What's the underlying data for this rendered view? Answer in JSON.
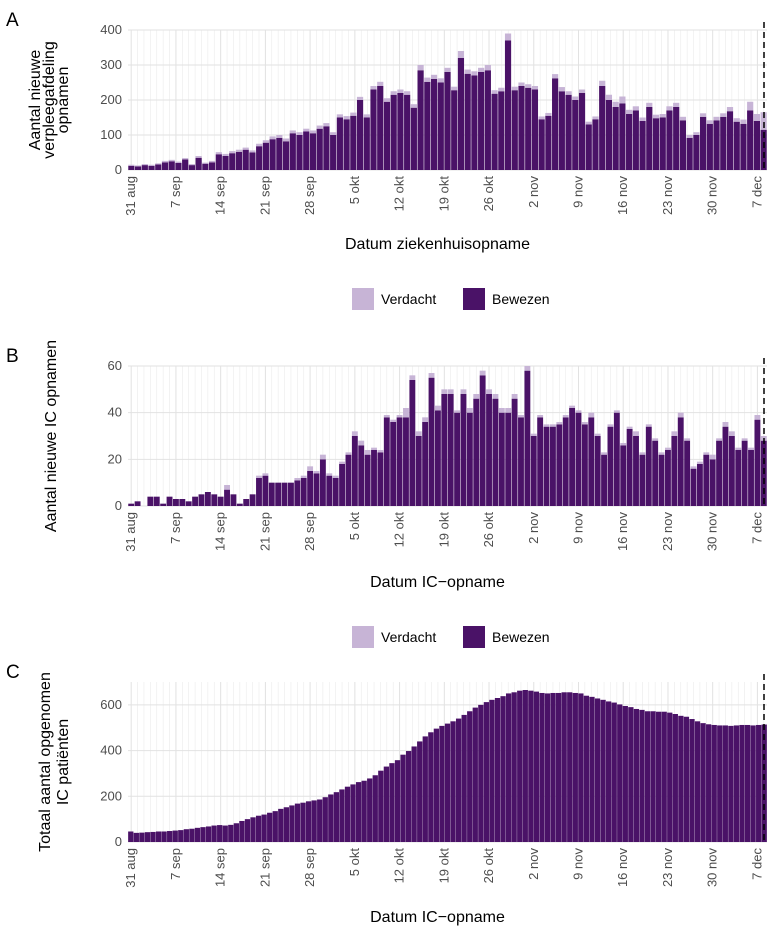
{
  "colors": {
    "bewezen": "#4a1267",
    "verdacht": "#c7b4d6",
    "grid": "#ebebeb"
  },
  "chart_data": [
    {
      "panel": "A",
      "type": "bar",
      "stacked": true,
      "ylabel": "Aantal nieuwe verpleegafdeling opnamen",
      "xlabel": "Datum ziekenhuisopname",
      "ylim": [
        0,
        400
      ],
      "yticks": [
        0,
        100,
        200,
        300,
        400
      ],
      "x_start": "2020-08-31",
      "x_ticks": [
        "31 aug",
        "7 sep",
        "14 sep",
        "21 sep",
        "28 sep",
        "5 okt",
        "12 okt",
        "19 okt",
        "26 okt",
        "2 nov",
        "9 nov",
        "16 nov",
        "23 nov",
        "30 nov",
        "7 dec"
      ],
      "series": [
        {
          "name": "Bewezen",
          "values": [
            12,
            10,
            14,
            12,
            16,
            22,
            25,
            20,
            30,
            14,
            35,
            18,
            22,
            45,
            40,
            48,
            52,
            58,
            50,
            68,
            78,
            88,
            92,
            82,
            105,
            100,
            110,
            105,
            118,
            125,
            100,
            150,
            145,
            155,
            200,
            150,
            230,
            240,
            195,
            215,
            220,
            215,
            178,
            285,
            252,
            260,
            250,
            280,
            228,
            320,
            275,
            270,
            280,
            285,
            218,
            225,
            370,
            228,
            240,
            235,
            230,
            145,
            155,
            262,
            225,
            215,
            200,
            220,
            130,
            145,
            240,
            200,
            180,
            190,
            160,
            170,
            140,
            180,
            148,
            150,
            170,
            180,
            142,
            92,
            100,
            152,
            132,
            142,
            152,
            168,
            138,
            132,
            170,
            140,
            115
          ]
        },
        {
          "name": "Verdacht",
          "values": [
            3,
            3,
            3,
            3,
            3,
            4,
            4,
            4,
            4,
            3,
            5,
            3,
            4,
            6,
            6,
            6,
            6,
            6,
            6,
            7,
            7,
            8,
            8,
            8,
            8,
            8,
            8,
            8,
            9,
            9,
            8,
            9,
            9,
            9,
            9,
            9,
            10,
            12,
            10,
            10,
            10,
            10,
            10,
            15,
            12,
            12,
            12,
            12,
            10,
            20,
            12,
            12,
            12,
            15,
            10,
            10,
            20,
            10,
            10,
            10,
            10,
            8,
            8,
            12,
            12,
            10,
            10,
            10,
            8,
            8,
            15,
            15,
            15,
            20,
            12,
            12,
            10,
            12,
            10,
            10,
            12,
            12,
            10,
            8,
            8,
            10,
            10,
            10,
            10,
            12,
            10,
            12,
            25,
            20,
            50
          ]
        }
      ]
    },
    {
      "panel": "B",
      "type": "bar",
      "stacked": true,
      "ylabel": "Aantal nieuwe IC opnamen",
      "xlabel": "Datum IC−opname",
      "ylim": [
        0,
        60
      ],
      "yticks": [
        0,
        20,
        40,
        60
      ],
      "x_start": "2020-08-31",
      "x_ticks": [
        "31 aug",
        "7 sep",
        "14 sep",
        "21 sep",
        "28 sep",
        "5 okt",
        "12 okt",
        "19 okt",
        "26 okt",
        "2 nov",
        "9 nov",
        "16 nov",
        "23 nov",
        "30 nov",
        "7 dec"
      ],
      "series": [
        {
          "name": "Bewezen",
          "values": [
            1,
            2,
            0,
            4,
            4,
            1,
            4,
            3,
            3,
            2,
            4,
            5,
            6,
            5,
            4,
            7,
            5,
            1,
            3,
            5,
            12,
            13,
            10,
            10,
            10,
            10,
            11,
            12,
            15,
            14,
            20,
            13,
            12,
            18,
            22,
            30,
            26,
            22,
            24,
            23,
            38,
            36,
            38,
            38,
            54,
            30,
            36,
            55,
            41,
            48,
            48,
            40,
            48,
            40,
            46,
            56,
            48,
            46,
            40,
            40,
            46,
            38,
            58,
            30,
            38,
            34,
            34,
            35,
            38,
            42,
            40,
            35,
            38,
            30,
            22,
            34,
            40,
            26,
            33,
            30,
            22,
            34,
            28,
            22,
            24,
            30,
            38,
            28,
            16,
            18,
            22,
            20,
            28,
            34,
            30,
            24,
            28,
            24,
            37,
            28
          ]
        },
        {
          "name": "Verdacht",
          "values": [
            0,
            0,
            0,
            0,
            0,
            0,
            0,
            0,
            0,
            0,
            0,
            0,
            0,
            0,
            0,
            2,
            0,
            0,
            0,
            0,
            1,
            1,
            0,
            0,
            0,
            0,
            1,
            1,
            2,
            1,
            2,
            1,
            1,
            1,
            1,
            2,
            2,
            2,
            1,
            1,
            1,
            1,
            1,
            4,
            2,
            2,
            2,
            2,
            2,
            2,
            2,
            1,
            2,
            2,
            2,
            2,
            2,
            2,
            2,
            2,
            2,
            1,
            2,
            1,
            1,
            1,
            1,
            1,
            1,
            1,
            1,
            1,
            2,
            1,
            1,
            1,
            1,
            1,
            1,
            2,
            1,
            1,
            1,
            1,
            1,
            2,
            2,
            1,
            1,
            1,
            1,
            2,
            1,
            2,
            2,
            1,
            1,
            1,
            2,
            2
          ]
        }
      ]
    },
    {
      "panel": "C",
      "type": "bar",
      "ylabel": "Totaal aantal opgenomen IC patiënten",
      "xlabel": "Datum IC−opname",
      "ylim": [
        0,
        700
      ],
      "yticks": [
        0,
        200,
        400,
        600
      ],
      "x_start": "2020-08-31",
      "x_ticks": [
        "31 aug",
        "7 sep",
        "14 sep",
        "21 sep",
        "28 sep",
        "5 okt",
        "12 okt",
        "19 okt",
        "26 okt",
        "2 nov",
        "9 nov",
        "16 nov",
        "23 nov",
        "30 nov",
        "7 dec"
      ],
      "series": [
        {
          "name": "Bewezen",
          "values": [
            46,
            40,
            41,
            43,
            44,
            46,
            46,
            48,
            50,
            52,
            56,
            58,
            62,
            65,
            68,
            72,
            74,
            72,
            75,
            82,
            92,
            100,
            108,
            115,
            120,
            128,
            135,
            145,
            152,
            160,
            168,
            172,
            178,
            182,
            186,
            196,
            208,
            218,
            230,
            242,
            252,
            262,
            268,
            278,
            292,
            312,
            330,
            345,
            358,
            382,
            398,
            418,
            440,
            462,
            480,
            496,
            508,
            518,
            528,
            540,
            556,
            572,
            588,
            600,
            612,
            622,
            630,
            638,
            650,
            655,
            662,
            665,
            662,
            658,
            652,
            650,
            652,
            652,
            655,
            655,
            652,
            650,
            640,
            635,
            628,
            622,
            615,
            610,
            602,
            595,
            590,
            582,
            578,
            572,
            572,
            570,
            570,
            566,
            560,
            552,
            548,
            538,
            528,
            520,
            515,
            512,
            510,
            510,
            508,
            510,
            512,
            512,
            510,
            512,
            514
          ]
        }
      ]
    }
  ],
  "legend": {
    "items": [
      "Verdacht",
      "Bewezen"
    ]
  },
  "panels": {
    "a": "A",
    "b": "B",
    "c": "C"
  }
}
